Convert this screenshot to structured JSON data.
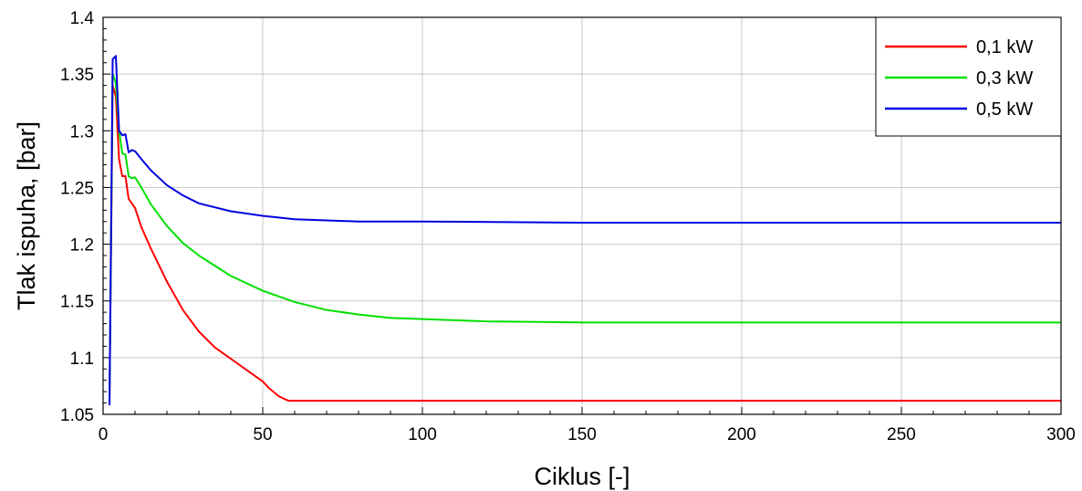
{
  "chart_data": {
    "type": "line",
    "xlabel": "Ciklus [-]",
    "ylabel": "Tlak ispuha, [bar]",
    "xlim": [
      0,
      300
    ],
    "ylim": [
      1.05,
      1.4
    ],
    "x_ticks": [
      "0",
      "50",
      "100",
      "150",
      "200",
      "250",
      "300"
    ],
    "y_ticks": [
      "1.05",
      "1.1",
      "1.15",
      "1.2",
      "1.25",
      "1.3",
      "1.35",
      "1.4"
    ],
    "grid": true,
    "legend_position": "top-right",
    "series": [
      {
        "name": "0,1 kW",
        "color": "#ff0000",
        "x": [
          2,
          3,
          4,
          5,
          6,
          7,
          8,
          9,
          10,
          12,
          15,
          20,
          25,
          30,
          35,
          40,
          45,
          50,
          52,
          55,
          58,
          60,
          70,
          100,
          150,
          200,
          250,
          300
        ],
        "y": [
          1.058,
          1.34,
          1.33,
          1.275,
          1.26,
          1.26,
          1.24,
          1.236,
          1.232,
          1.215,
          1.196,
          1.167,
          1.142,
          1.123,
          1.109,
          1.099,
          1.089,
          1.079,
          1.073,
          1.066,
          1.062,
          1.062,
          1.062,
          1.062,
          1.062,
          1.062,
          1.062,
          1.062
        ]
      },
      {
        "name": "0,3 kW",
        "color": "#00e000",
        "x": [
          2,
          3,
          4,
          5,
          6,
          7,
          8,
          9,
          10,
          12,
          15,
          20,
          25,
          30,
          40,
          50,
          60,
          70,
          80,
          90,
          100,
          120,
          150,
          200,
          250,
          300
        ],
        "y": [
          1.058,
          1.35,
          1.342,
          1.3,
          1.28,
          1.279,
          1.26,
          1.258,
          1.259,
          1.25,
          1.235,
          1.216,
          1.201,
          1.19,
          1.172,
          1.159,
          1.149,
          1.142,
          1.138,
          1.135,
          1.134,
          1.132,
          1.131,
          1.131,
          1.131,
          1.131
        ]
      },
      {
        "name": "0,5 kW",
        "color": "#0000e0",
        "x": [
          2,
          3,
          4,
          5,
          6,
          7,
          8,
          9,
          10,
          12,
          15,
          20,
          25,
          30,
          40,
          50,
          60,
          70,
          80,
          100,
          150,
          200,
          250,
          300
        ],
        "y": [
          1.058,
          1.363,
          1.366,
          1.3,
          1.296,
          1.297,
          1.281,
          1.283,
          1.282,
          1.275,
          1.265,
          1.252,
          1.243,
          1.236,
          1.229,
          1.225,
          1.222,
          1.221,
          1.22,
          1.22,
          1.219,
          1.219,
          1.219,
          1.219
        ]
      }
    ]
  }
}
